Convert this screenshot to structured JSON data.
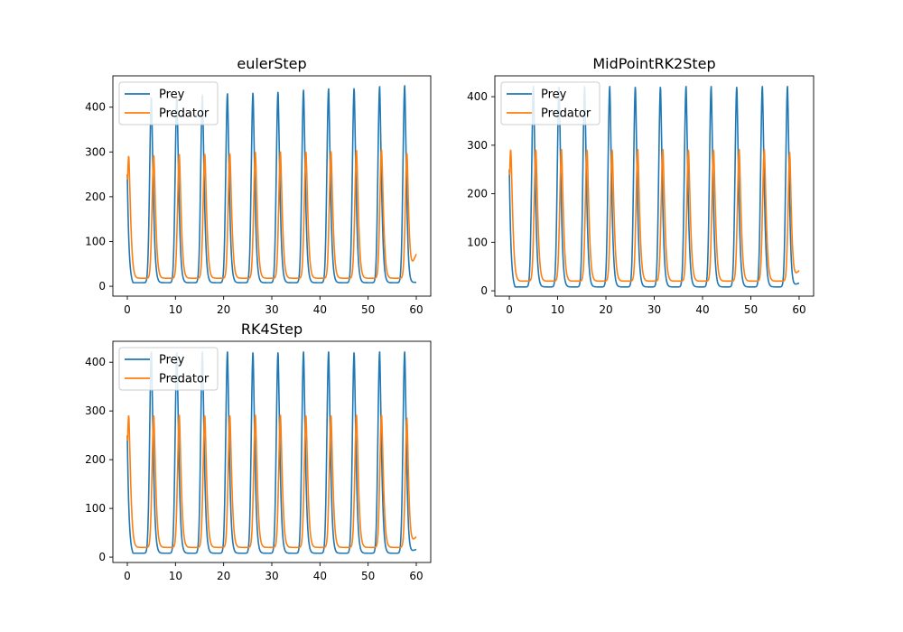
{
  "chart_data": [
    {
      "type": "line",
      "title": "eulerStep",
      "xlabel": "",
      "ylabel": "",
      "xlim": [
        -3,
        63
      ],
      "ylim": [
        -22,
        470
      ],
      "xticks": [
        0,
        10,
        20,
        30,
        40,
        50,
        60
      ],
      "yticks": [
        0,
        100,
        200,
        300,
        400
      ],
      "grid": false,
      "legend_position": "upper-left",
      "series": [
        {
          "name": "Prey",
          "color": "#1f77b4",
          "start_value": 250,
          "end_value": 9,
          "peak_times": [
            5.0,
            10.3,
            15.6,
            20.8,
            26.1,
            31.3,
            36.6,
            41.8,
            47.1,
            52.4,
            57.6
          ],
          "peak_values": [
            422,
            425,
            428,
            431,
            434,
            436,
            439,
            442,
            444,
            447,
            449
          ],
          "trough_value": 8
        },
        {
          "name": "Predator",
          "color": "#ff7f0e",
          "start_value": 250,
          "end_value": 72,
          "peak_times": [
            0.3,
            5.5,
            10.8,
            16.1,
            21.3,
            26.6,
            31.8,
            37.1,
            42.3,
            47.6,
            52.8,
            58.1
          ],
          "peak_values": [
            292,
            294,
            295,
            297,
            298,
            300,
            301,
            302,
            303,
            304,
            305,
            306
          ],
          "trough_value": 18
        }
      ]
    },
    {
      "type": "line",
      "title": "MidPointRK2Step",
      "xlabel": "",
      "ylabel": "",
      "xlim": [
        -3,
        63
      ],
      "ylim": [
        -11,
        443
      ],
      "xticks": [
        0,
        10,
        20,
        30,
        40,
        50,
        60
      ],
      "yticks": [
        0,
        100,
        200,
        300,
        400
      ],
      "grid": false,
      "legend_position": "upper-left",
      "series": [
        {
          "name": "Prey",
          "color": "#1f77b4",
          "start_value": 250,
          "end_value": 16,
          "peak_times": [
            5.0,
            10.3,
            15.6,
            20.8,
            26.1,
            31.3,
            36.6,
            41.8,
            47.1,
            52.4,
            57.6
          ],
          "peak_values": [
            422,
            422,
            422,
            422,
            422,
            422,
            422,
            422,
            422,
            422,
            422
          ],
          "trough_value": 8
        },
        {
          "name": "Predator",
          "color": "#ff7f0e",
          "start_value": 250,
          "end_value": 42,
          "peak_times": [
            0.3,
            5.5,
            10.8,
            16.1,
            21.3,
            26.6,
            31.8,
            37.1,
            42.3,
            47.6,
            52.8,
            58.1
          ],
          "peak_values": [
            292,
            292,
            292,
            292,
            292,
            292,
            292,
            292,
            292,
            292,
            292,
            292
          ],
          "trough_value": 20
        }
      ]
    },
    {
      "type": "line",
      "title": "RK4Step",
      "xlabel": "",
      "ylabel": "",
      "xlim": [
        -3,
        63
      ],
      "ylim": [
        -11,
        443
      ],
      "xticks": [
        0,
        10,
        20,
        30,
        40,
        50,
        60
      ],
      "yticks": [
        0,
        100,
        200,
        300,
        400
      ],
      "grid": false,
      "legend_position": "upper-left",
      "series": [
        {
          "name": "Prey",
          "color": "#1f77b4",
          "start_value": 250,
          "end_value": 16,
          "peak_times": [
            5.0,
            10.3,
            15.6,
            20.8,
            26.1,
            31.3,
            36.6,
            41.8,
            47.1,
            52.4,
            57.6
          ],
          "peak_values": [
            422,
            422,
            422,
            422,
            422,
            422,
            422,
            422,
            422,
            422,
            422
          ],
          "trough_value": 8
        },
        {
          "name": "Predator",
          "color": "#ff7f0e",
          "start_value": 250,
          "end_value": 42,
          "peak_times": [
            0.3,
            5.5,
            10.8,
            16.1,
            21.3,
            26.6,
            31.8,
            37.1,
            42.3,
            47.6,
            52.8,
            58.1
          ],
          "peak_values": [
            292,
            292,
            292,
            292,
            292,
            292,
            292,
            292,
            292,
            292,
            292,
            292
          ],
          "trough_value": 20
        }
      ]
    }
  ]
}
